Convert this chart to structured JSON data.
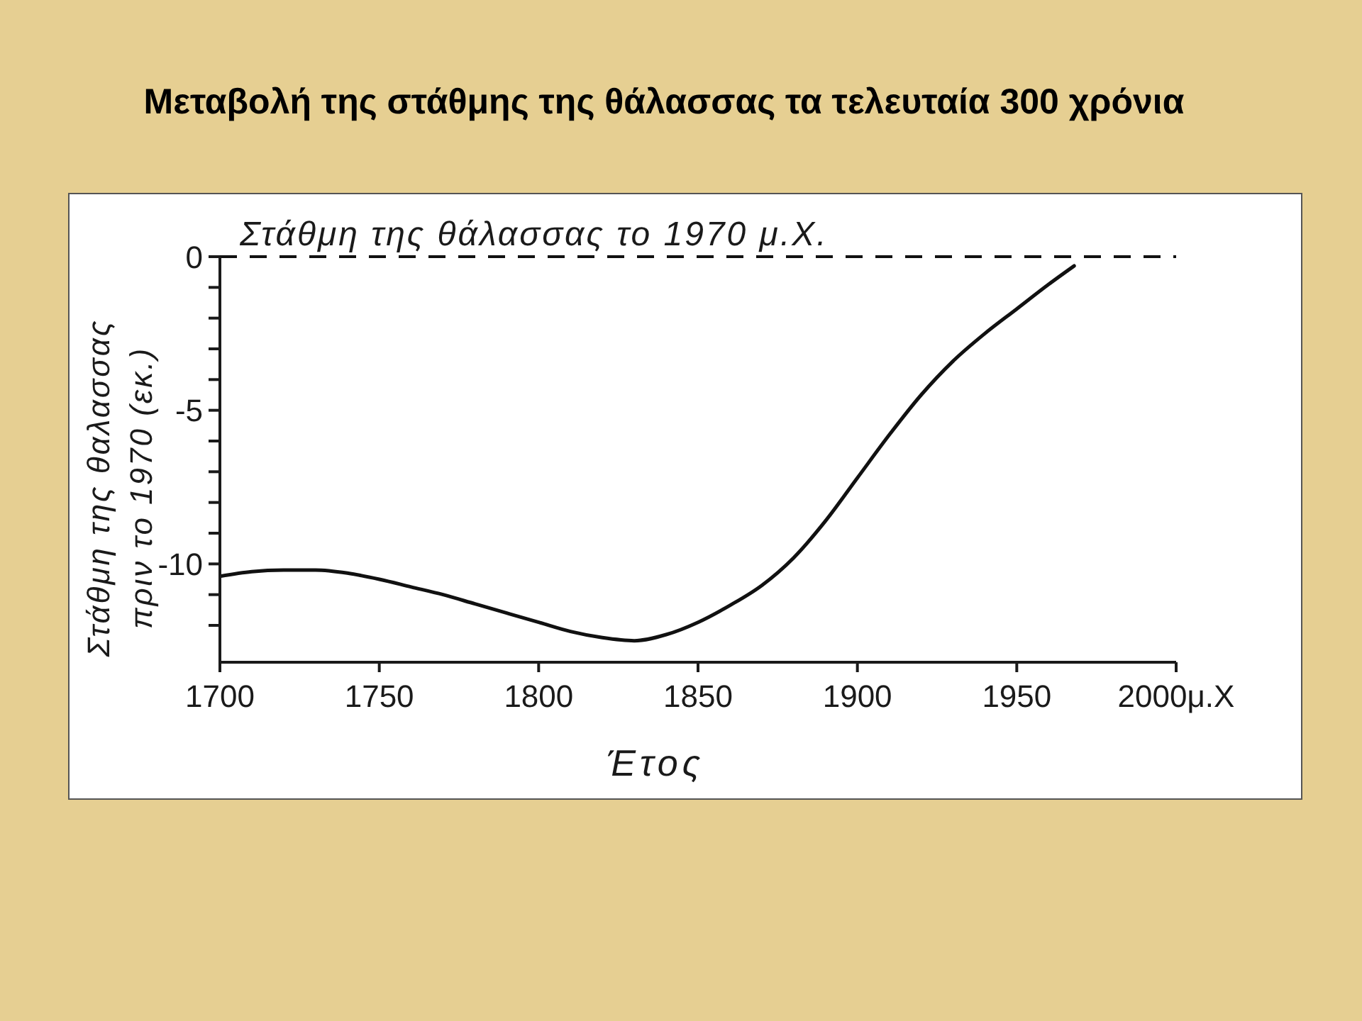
{
  "chart_data": {
    "type": "line",
    "title": "Μεταβολή της στάθμης της θάλασσας τα τελευταία 300 χρόνια",
    "xlabel": "Έτος",
    "ylabel": "Στάθμη της θαλασσας πριν το 1970 (εκ.)",
    "x": [
      1700,
      1710,
      1720,
      1730,
      1740,
      1750,
      1760,
      1770,
      1780,
      1790,
      1800,
      1810,
      1820,
      1830,
      1840,
      1850,
      1860,
      1870,
      1880,
      1890,
      1900,
      1910,
      1920,
      1930,
      1940,
      1950,
      1960,
      1968
    ],
    "series": [
      {
        "color": "#111111",
        "values": [
          -10.4,
          -10.25,
          -10.2,
          -10.2,
          -10.3,
          -10.5,
          -10.75,
          -11.0,
          -11.3,
          -11.6,
          -11.9,
          -12.2,
          -12.4,
          -12.5,
          -12.3,
          -11.9,
          -11.35,
          -10.7,
          -9.8,
          -8.6,
          -7.2,
          -5.8,
          -4.5,
          -3.4,
          -2.5,
          -1.7,
          -0.9,
          -0.3
        ]
      }
    ],
    "xlim": [
      1700,
      2000
    ],
    "xticks": [
      1700,
      1750,
      1800,
      1850,
      1900,
      1950,
      {
        "value": 2000,
        "label": "2000μ.Χ"
      }
    ],
    "ylim": [
      -13.2,
      0
    ],
    "yticks": [
      0,
      {
        "value": -1,
        "label": null
      },
      {
        "value": -2,
        "label": null
      },
      {
        "value": -3,
        "label": null
      },
      {
        "value": -4,
        "label": null
      },
      -5,
      {
        "value": -6,
        "label": null
      },
      {
        "value": -7,
        "label": null
      },
      {
        "value": -8,
        "label": null
      },
      {
        "value": -9,
        "label": null
      },
      -10,
      {
        "value": -11,
        "label": null
      },
      {
        "value": -12,
        "label": null
      }
    ],
    "ref_lines": [
      {
        "axis": "y",
        "value": 0,
        "label": "Στάθμη της θάλασσας το 1970 μ.Χ.",
        "line_style": "dashed",
        "color": "#111111"
      }
    ],
    "grid": false,
    "legend": false,
    "marker": "none",
    "line_style": "solid"
  }
}
